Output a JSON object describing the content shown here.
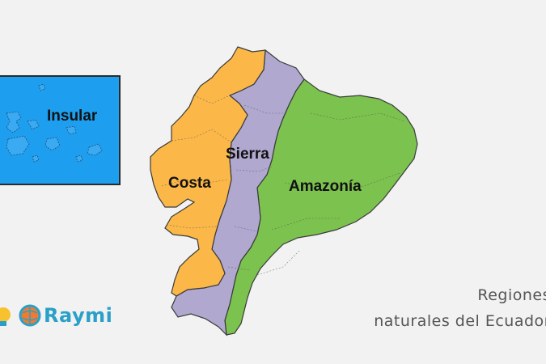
{
  "regions": [
    {
      "id": "insular",
      "label": "Insular",
      "color": "#1e9eee"
    },
    {
      "id": "costa",
      "label": "Costa",
      "color": "#fbb848"
    },
    {
      "id": "sierra",
      "label": "Sierra",
      "color": "#b0a8cf"
    },
    {
      "id": "amazonia",
      "label": "Amazonía",
      "color": "#7cc24f"
    }
  ],
  "title": {
    "line1": "Regiones",
    "line2": "naturales del Ecuador"
  },
  "logo": {
    "text": "Raymi",
    "color": "#2aa0c8",
    "icons": [
      "lightbulb-icon",
      "globe-icon"
    ]
  },
  "colors": {
    "background": "#f2f2f2",
    "border": "#3a3a3a"
  }
}
